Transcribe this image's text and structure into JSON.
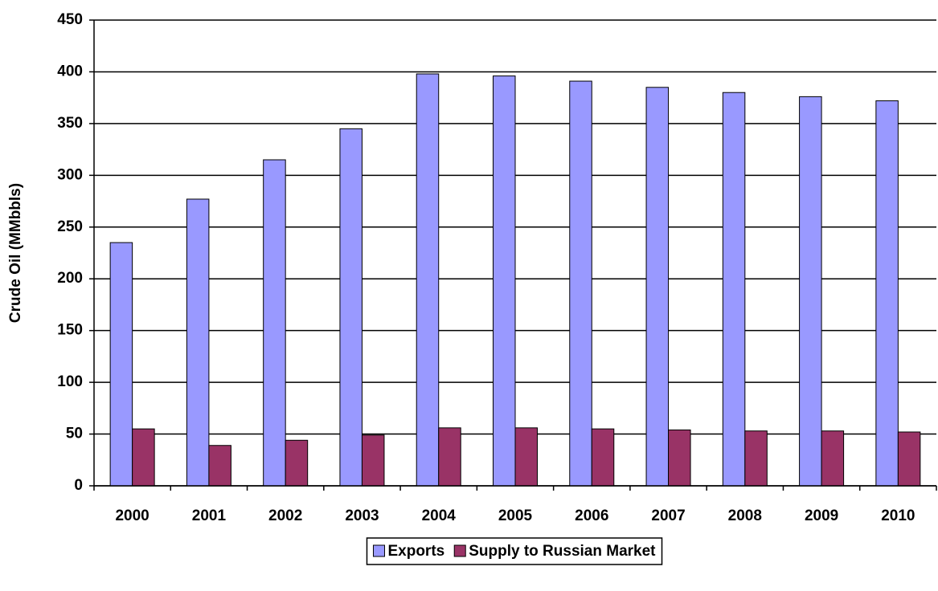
{
  "chart_data": {
    "type": "bar",
    "y_label": "Crude Oil (MMbbls)",
    "categories": [
      "2000",
      "2001",
      "2002",
      "2003",
      "2004",
      "2005",
      "2006",
      "2007",
      "2008",
      "2009",
      "2010"
    ],
    "series": [
      {
        "name": "Exports",
        "color": "#9999ff",
        "values": [
          235,
          277,
          315,
          345,
          398,
          396,
          391,
          385,
          380,
          376,
          372
        ]
      },
      {
        "name": "Supply to Russian Market",
        "color": "#993366",
        "values": [
          55,
          39,
          44,
          49,
          56,
          56,
          55,
          54,
          53,
          53,
          52
        ]
      }
    ],
    "ylim": [
      0,
      450
    ],
    "yticks": [
      0,
      50,
      100,
      150,
      200,
      250,
      300,
      350,
      400,
      450
    ],
    "grid": true,
    "legend": "bottom"
  }
}
